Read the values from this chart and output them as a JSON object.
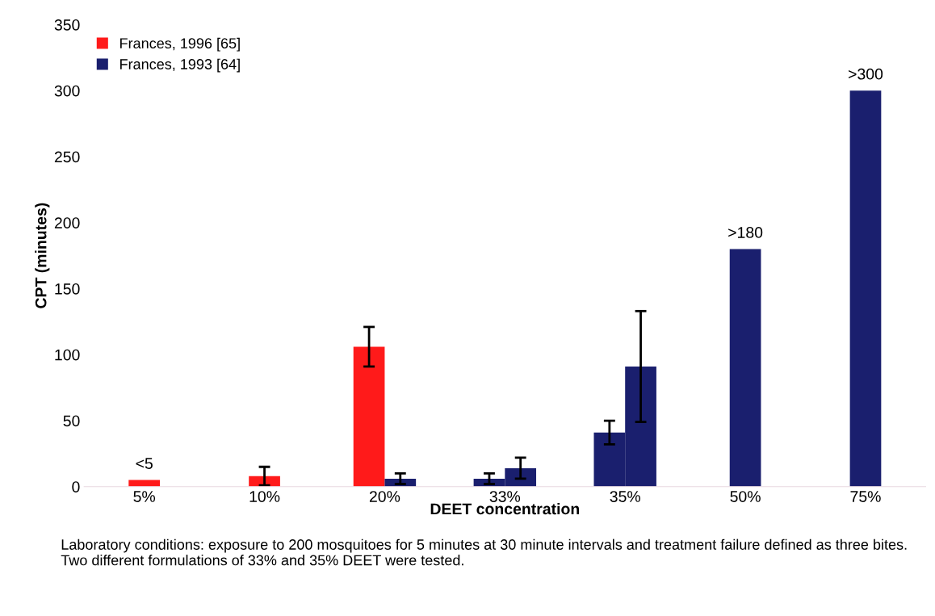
{
  "chart_data": {
    "type": "bar",
    "ylabel": "CPT (minutes)",
    "xlabel": "DEET concentration",
    "categories": [
      "5%",
      "10%",
      "20%",
      "33%",
      "35%",
      "50%",
      "75%"
    ],
    "series": [
      {
        "name": "Frances, 1996 [65]",
        "color": "#ff1a1a",
        "values": [
          5,
          8,
          106,
          null,
          null,
          null,
          null
        ],
        "errors": [
          null,
          7,
          15,
          null,
          null,
          null,
          null
        ],
        "value_labels": [
          "<5",
          null,
          null,
          null,
          null,
          null,
          null
        ]
      },
      {
        "name": "Frances, 1993 [64]",
        "color": "#1a1f6e",
        "values": [
          null,
          null,
          6,
          6,
          41,
          180,
          300
        ],
        "errors": [
          null,
          null,
          4,
          4,
          9,
          null,
          null
        ],
        "value_labels": [
          null,
          null,
          null,
          null,
          null,
          ">180",
          ">300"
        ]
      },
      {
        "color": "#1a1f6e",
        "values": [
          null,
          null,
          null,
          14,
          91,
          null,
          null
        ],
        "errors": [
          null,
          null,
          null,
          8,
          42,
          null,
          null
        ]
      }
    ],
    "ylim": [
      0,
      350
    ],
    "yticks": [
      0,
      50,
      100,
      150,
      200,
      250,
      300,
      350
    ],
    "grid": false,
    "legend": "top left",
    "annotations": [
      "Laboratory conditions: exposure to 200 mosquitoes for 5 minutes at 30 minute intervals and treatment failure defined as three bites. Two different formulations of 33% and 35% DEET were tested."
    ]
  }
}
